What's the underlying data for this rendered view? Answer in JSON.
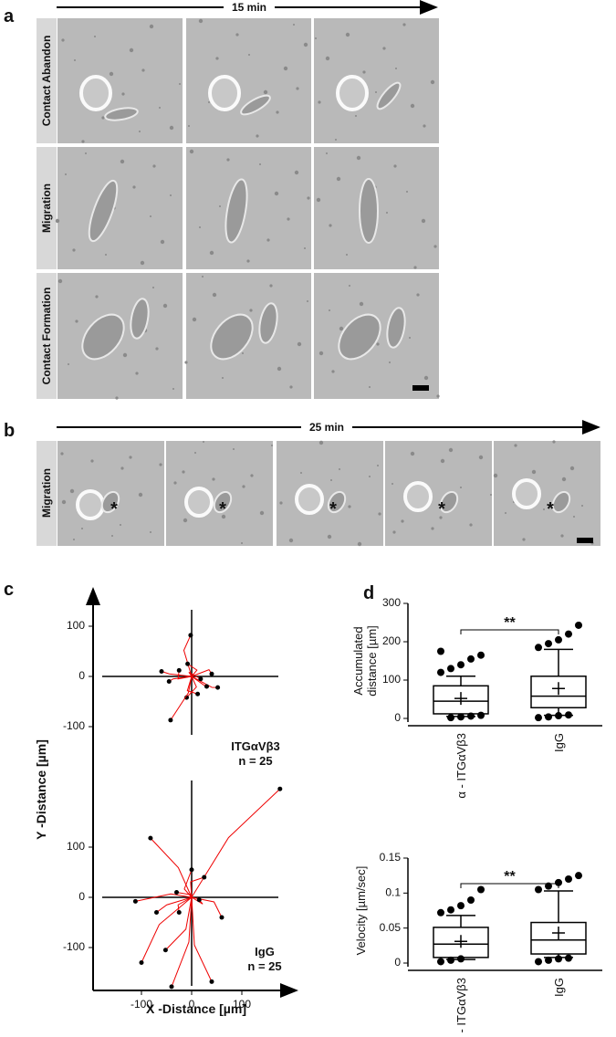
{
  "panel_a": {
    "label": "a",
    "time": "15 min",
    "rows": [
      "Contact Abandon",
      "Migration",
      "Contact Formation"
    ]
  },
  "panel_b": {
    "label": "b",
    "time": "25 min",
    "row": "Migration",
    "markers": [
      "*",
      "*",
      "*",
      "*",
      "*"
    ]
  },
  "panel_c": {
    "label": "c",
    "y_label": "Y -Distance [µm]",
    "x_label": "X -Distance [µm]",
    "xticks": [
      -100,
      0,
      100
    ],
    "plots": [
      {
        "name": "ITGαVβ3",
        "n": "n = 25",
        "yticks": [
          100,
          0,
          -100
        ],
        "end_x": [
          -2,
          -8,
          -25,
          40,
          -45,
          52,
          18,
          -10,
          12,
          -42,
          -60,
          30
        ],
        "end_y": [
          82,
          25,
          12,
          5,
          -10,
          -22,
          -5,
          -42,
          -35,
          -87,
          10,
          -20
        ]
      },
      {
        "name": "IgG",
        "n": "n = 25",
        "yticks": [
          100,
          0,
          -100
        ],
        "end_x": [
          176,
          -82,
          0,
          -112,
          -70,
          -52,
          -100,
          -40,
          40,
          60,
          -25,
          15,
          25,
          -30
        ],
        "end_y": [
          216,
          118,
          55,
          -8,
          -30,
          -105,
          -130,
          -178,
          -168,
          -40,
          -30,
          -5,
          40,
          10
        ]
      }
    ]
  },
  "panel_d": {
    "label": "d",
    "categories": [
      "α - ITGαVβ3",
      "IgG"
    ],
    "significance": [
      "**",
      "**"
    ],
    "charts": [
      {
        "y_label": [
          "Accumulated",
          "distance [µm]"
        ],
        "ylim": [
          0,
          300
        ],
        "yticks": [
          0,
          100,
          200,
          300
        ],
        "boxes": [
          {
            "low": 5,
            "q1": 12,
            "median": 45,
            "q3": 85,
            "high": 110,
            "mean": 52,
            "outliers": [
              120,
              130,
              140,
              155,
              165,
              175,
              2,
              4,
              6,
              8
            ]
          },
          {
            "low": 8,
            "q1": 28,
            "median": 58,
            "q3": 110,
            "high": 180,
            "mean": 78,
            "outliers": [
              185,
              195,
              205,
              220,
              243,
              2,
              4,
              7,
              9
            ]
          }
        ]
      },
      {
        "y_label": [
          "Velocity [µm/sec]"
        ],
        "ylim": [
          0,
          0.15
        ],
        "yticks": [
          0,
          0.05,
          0.1,
          0.15
        ],
        "boxes": [
          {
            "low": 0.005,
            "q1": 0.008,
            "median": 0.027,
            "q3": 0.051,
            "high": 0.068,
            "mean": 0.031,
            "outliers": [
              0.072,
              0.076,
              0.082,
              0.09,
              0.105,
              0.002,
              0.004,
              0.006
            ]
          },
          {
            "low": 0.008,
            "q1": 0.013,
            "median": 0.033,
            "q3": 0.058,
            "high": 0.103,
            "mean": 0.043,
            "outliers": [
              0.105,
              0.11,
              0.115,
              0.12,
              0.125,
              0.002,
              0.004,
              0.006,
              0.007
            ]
          }
        ]
      }
    ]
  }
}
